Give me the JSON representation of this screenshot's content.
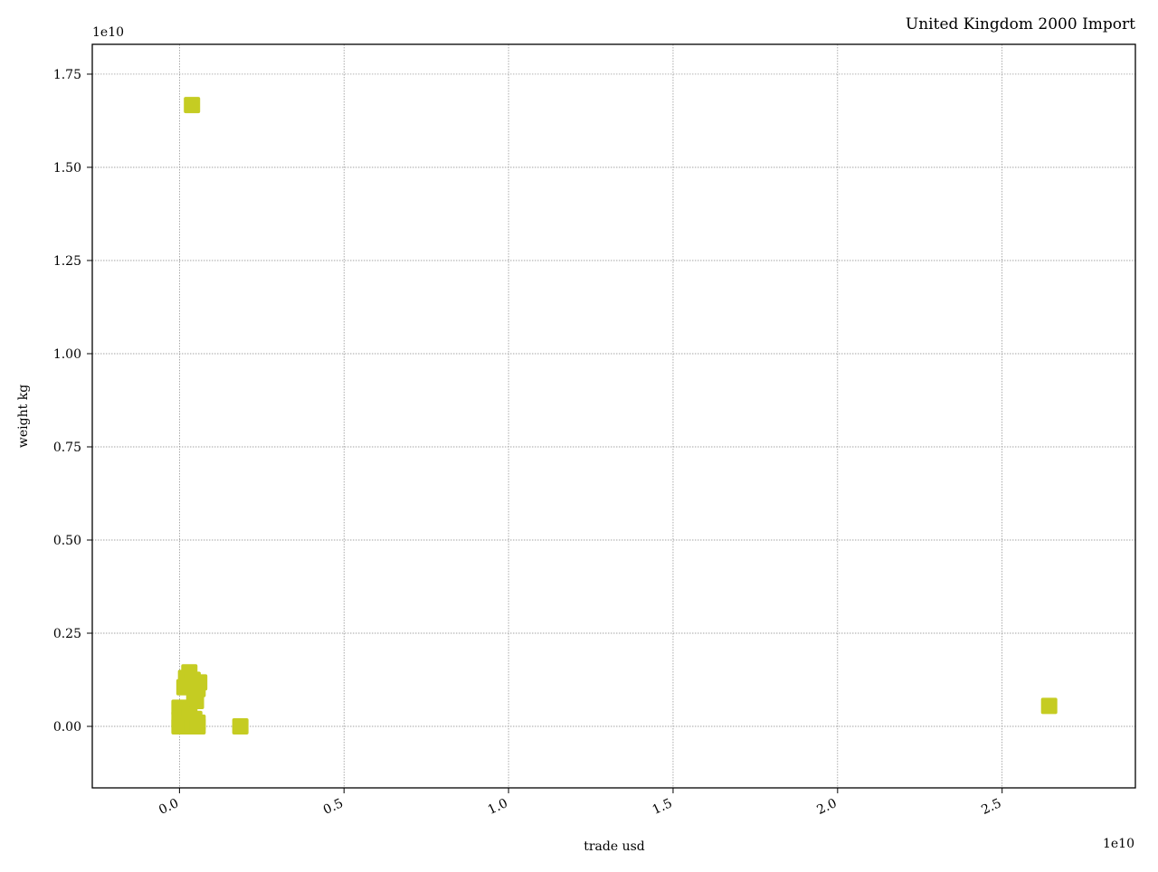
{
  "chart_data": {
    "type": "scatter",
    "title": "United Kingdom 2000 Import",
    "xlabel": "trade usd",
    "ylabel": "weight kg",
    "x_offset_text": "1e10",
    "y_offset_text": "1e10",
    "xlim": [
      -0.265,
      2.905
    ],
    "ylim": [
      -0.165,
      1.83
    ],
    "x_ticks": [
      0.0,
      0.5,
      1.0,
      1.5,
      2.0,
      2.5
    ],
    "x_tick_labels": [
      "0.0",
      "0.5",
      "1.0",
      "1.5",
      "2.0",
      "2.5"
    ],
    "y_ticks": [
      0.0,
      0.25,
      0.5,
      0.75,
      1.0,
      1.25,
      1.5,
      1.75
    ],
    "y_tick_labels": [
      "0.00",
      "0.25",
      "0.50",
      "0.75",
      "1.00",
      "1.25",
      "1.50",
      "1.75"
    ],
    "grid": true,
    "marker": "square",
    "marker_color": "#c5cc22",
    "series": [
      {
        "points": [
          {
            "x": 0.038,
            "y": 1.667
          },
          {
            "x": 0.03,
            "y": 0.145
          },
          {
            "x": 0.02,
            "y": 0.13
          },
          {
            "x": 0.04,
            "y": 0.125
          },
          {
            "x": 0.06,
            "y": 0.118
          },
          {
            "x": 0.055,
            "y": 0.1
          },
          {
            "x": 0.015,
            "y": 0.105
          },
          {
            "x": 0.045,
            "y": 0.08
          },
          {
            "x": 0.05,
            "y": 0.068
          },
          {
            "x": 0.0,
            "y": 0.05
          },
          {
            "x": 0.005,
            "y": 0.04
          },
          {
            "x": 0.01,
            "y": 0.03
          },
          {
            "x": 0.0,
            "y": 0.02
          },
          {
            "x": 0.02,
            "y": 0.025
          },
          {
            "x": 0.03,
            "y": 0.03
          },
          {
            "x": 0.045,
            "y": 0.02
          },
          {
            "x": 0.055,
            "y": 0.01
          },
          {
            "x": 0.01,
            "y": 0.005
          },
          {
            "x": 0.0,
            "y": 0.0
          },
          {
            "x": 0.025,
            "y": 0.0
          },
          {
            "x": 0.04,
            "y": 0.002
          },
          {
            "x": 0.055,
            "y": 0.0
          },
          {
            "x": 0.185,
            "y": 0.0
          },
          {
            "x": 2.643,
            "y": 0.055
          }
        ]
      }
    ]
  }
}
